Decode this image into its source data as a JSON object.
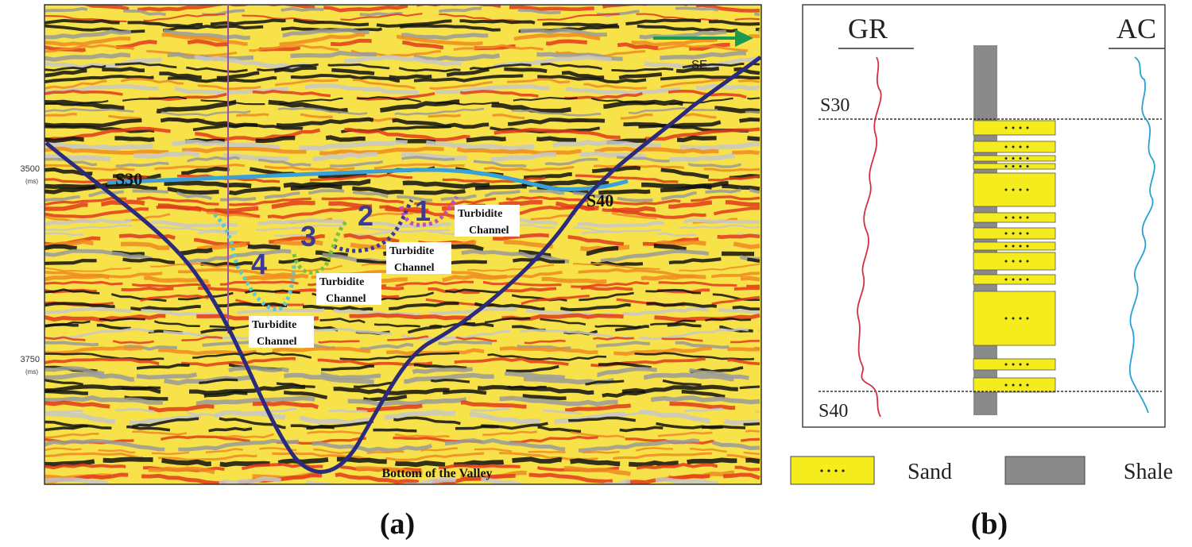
{
  "panel_a": {
    "label": "(a)",
    "y_axis": [
      {
        "value": "3500",
        "unit": "(ms)"
      },
      {
        "value": "3750",
        "unit": "(ms)"
      }
    ],
    "direction": "SE",
    "horizons": [
      "S30",
      "S40"
    ],
    "channels": [
      {
        "number": "1",
        "label": [
          "Turbidite",
          "Channel"
        ]
      },
      {
        "number": "2",
        "label": [
          "Turbidite",
          "Channel"
        ]
      },
      {
        "number": "3",
        "label": [
          "Turbidite",
          "Channel"
        ]
      },
      {
        "number": "4",
        "label": [
          "Turbidite",
          "Channel"
        ]
      }
    ],
    "valley_label": "Bottom of the Valley"
  },
  "panel_b": {
    "label": "(b)",
    "logs": [
      "GR",
      "AC"
    ],
    "horizons": [
      "S30",
      "S40"
    ],
    "legend": [
      "Sand",
      "Shale"
    ]
  }
}
